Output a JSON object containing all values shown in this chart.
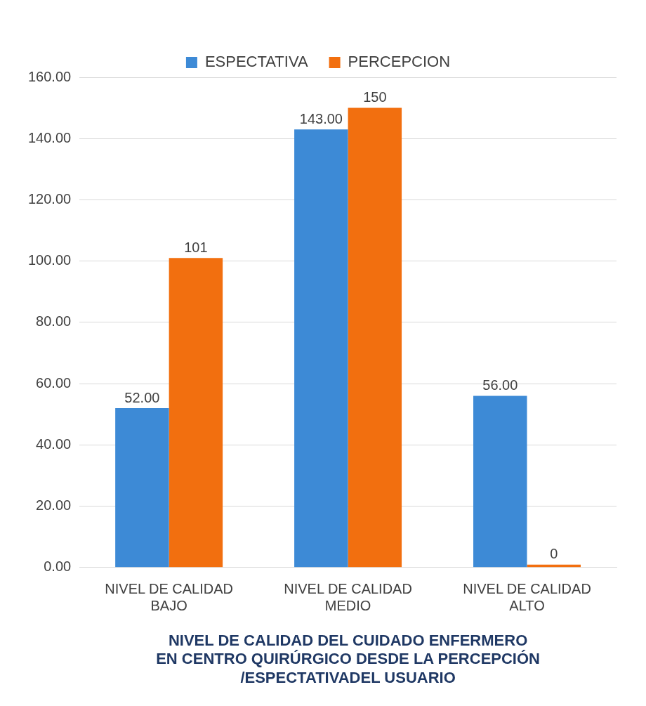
{
  "chart_data": {
    "type": "bar",
    "xlabel": "NIVEL DE CALIDAD DEL CUIDADO ENFERMERO\nEN CENTRO QUIRÚRGICO DESDE LA PERCEPCIÓN\n/ESPECTATIVADEL USUARIO",
    "categories": [
      "NIVEL DE CALIDAD\nBAJO",
      "NIVEL DE CALIDAD\nMEDIO",
      "NIVEL DE CALIDAD\nALTO"
    ],
    "series": [
      {
        "name": "ESPECTATIVA",
        "color": "#3d8ad6",
        "values": [
          52,
          143,
          56
        ],
        "value_labels": [
          "52.00",
          "143.00",
          "56.00"
        ]
      },
      {
        "name": "PERCEPCION",
        "color": "#f26f0f",
        "values": [
          101,
          150,
          0
        ],
        "value_labels": [
          "101",
          "150",
          "0"
        ]
      }
    ],
    "ylim": [
      0,
      160
    ],
    "yticks": [
      {
        "value": 0,
        "label": "0.00"
      },
      {
        "value": 20,
        "label": "20.00"
      },
      {
        "value": 40,
        "label": "40.00"
      },
      {
        "value": 60,
        "label": "60.00"
      },
      {
        "value": 80,
        "label": "80.00"
      },
      {
        "value": 100,
        "label": "100.00"
      },
      {
        "value": 120,
        "label": "120.00"
      },
      {
        "value": 140,
        "label": "140.00"
      },
      {
        "value": 160,
        "label": "160.00"
      }
    ],
    "grid": "y",
    "legend": "top"
  }
}
